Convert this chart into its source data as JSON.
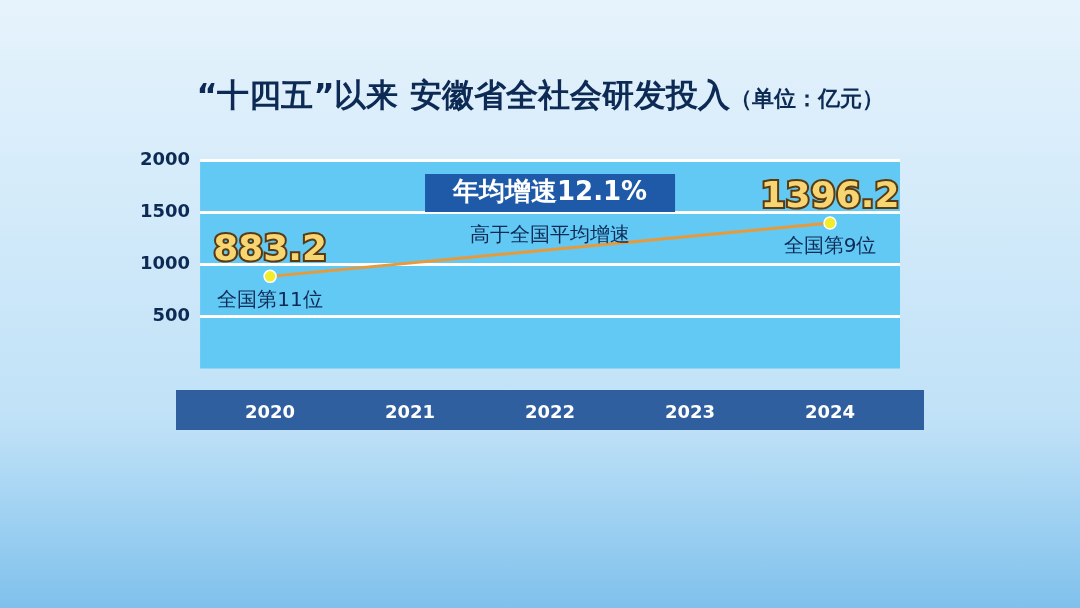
{
  "chart_data": {
    "type": "line",
    "title": "“十四五”以来  安徽省全社会研发投入",
    "subtitle": "（单位：亿元）",
    "x": [
      2020,
      2024
    ],
    "xlim": [
      2019.5,
      2024.5
    ],
    "xticks": [
      2020,
      2021,
      2022,
      2023,
      2024
    ],
    "ylim": [
      0,
      2000
    ],
    "yticks": [
      500,
      1000,
      1500,
      2000
    ],
    "series": [
      {
        "color": "#e89a3a",
        "values": [
          883.2,
          1396.2
        ]
      }
    ],
    "data_labels": true,
    "marker": "circle",
    "grid": "y",
    "legend": false,
    "annotations": [
      "年均增速12.1%",
      "高于全国平均增速",
      {
        "text": "全国第11位",
        "x": 2020,
        "y": 883.2
      },
      {
        "text": "全国第9位",
        "x": 2024,
        "y": 1396.2
      }
    ]
  }
}
